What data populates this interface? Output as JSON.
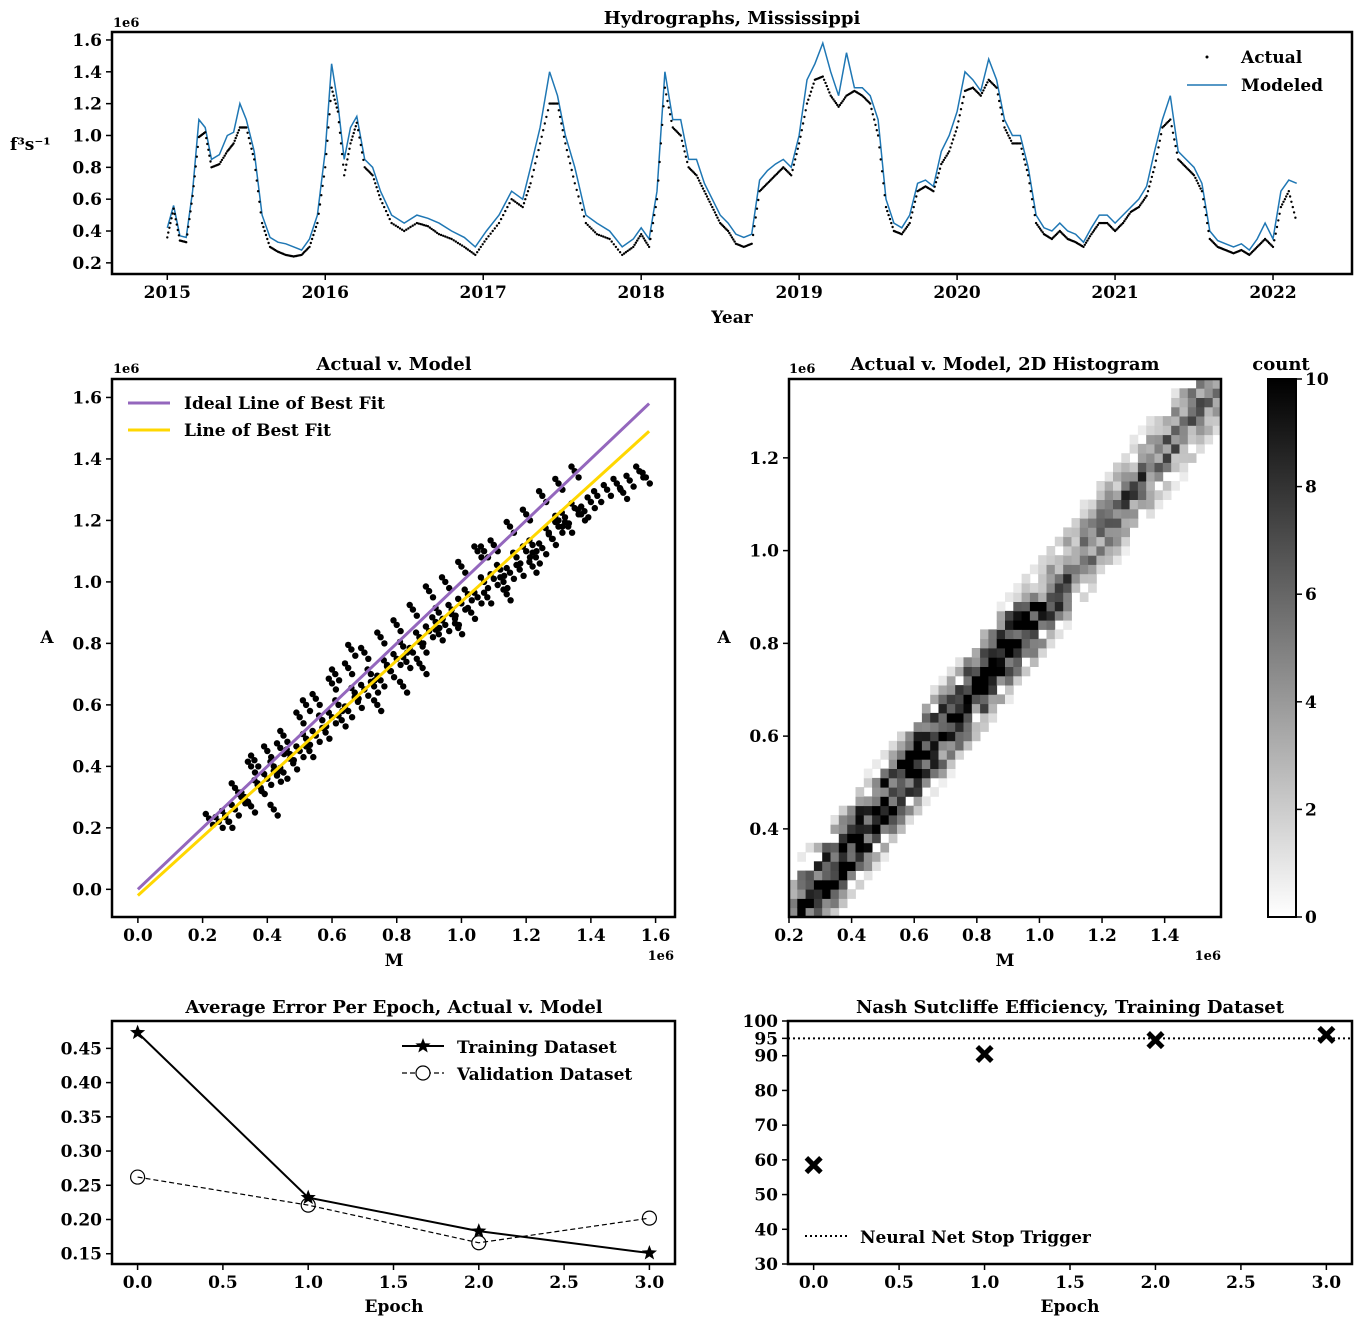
{
  "chart_data": [
    {
      "type": "line",
      "title": "Hydrographs, Mississippi",
      "xlabel": "Year",
      "ylabel": "f³s⁻¹",
      "y_offset_label": "1e6",
      "xlim": [
        2014.65,
        2022.5
      ],
      "ylim": [
        0.13,
        1.65
      ],
      "x_ticks": [
        2015,
        2016,
        2017,
        2018,
        2019,
        2020,
        2021,
        2022
      ],
      "y_ticks": [
        0.2,
        0.4,
        0.6,
        0.8,
        1.0,
        1.2,
        1.4,
        1.6
      ],
      "legend": "top-right",
      "series": [
        {
          "name": "Actual",
          "style": "dots",
          "color": "#000000",
          "x": [
            2015.0,
            2015.04,
            2015.08,
            2015.12,
            2015.16,
            2015.2,
            2015.24,
            2015.28,
            2015.33,
            2015.38,
            2015.42,
            2015.46,
            2015.5,
            2015.55,
            2015.6,
            2015.65,
            2015.7,
            2015.75,
            2015.8,
            2015.85,
            2015.9,
            2015.95,
            2016.0,
            2016.04,
            2016.08,
            2016.12,
            2016.16,
            2016.2,
            2016.25,
            2016.3,
            2016.35,
            2016.42,
            2016.5,
            2016.58,
            2016.65,
            2016.72,
            2016.8,
            2016.88,
            2016.95,
            2017.02,
            2017.1,
            2017.18,
            2017.25,
            2017.3,
            2017.36,
            2017.42,
            2017.47,
            2017.52,
            2017.58,
            2017.65,
            2017.72,
            2017.8,
            2017.88,
            2017.95,
            2018.0,
            2018.05,
            2018.1,
            2018.15,
            2018.2,
            2018.25,
            2018.3,
            2018.35,
            2018.4,
            2018.45,
            2018.5,
            2018.55,
            2018.6,
            2018.65,
            2018.7,
            2018.75,
            2018.8,
            2018.85,
            2018.9,
            2018.95,
            2019.0,
            2019.05,
            2019.1,
            2019.15,
            2019.2,
            2019.25,
            2019.3,
            2019.35,
            2019.4,
            2019.45,
            2019.5,
            2019.55,
            2019.6,
            2019.65,
            2019.7,
            2019.75,
            2019.8,
            2019.85,
            2019.9,
            2019.95,
            2020.0,
            2020.05,
            2020.1,
            2020.15,
            2020.2,
            2020.25,
            2020.3,
            2020.35,
            2020.4,
            2020.45,
            2020.5,
            2020.55,
            2020.6,
            2020.65,
            2020.7,
            2020.75,
            2020.8,
            2020.85,
            2020.9,
            2020.95,
            2021.0,
            2021.05,
            2021.1,
            2021.15,
            2021.2,
            2021.25,
            2021.3,
            2021.35,
            2021.4,
            2021.45,
            2021.5,
            2021.55,
            2021.6,
            2021.65,
            2021.7,
            2021.75,
            2021.8,
            2021.85,
            2021.9,
            2021.95,
            2022.0,
            2022.05,
            2022.1,
            2022.15
          ],
          "y": [
            0.36,
            0.54,
            0.34,
            0.33,
            0.62,
            0.99,
            1.02,
            0.8,
            0.82,
            0.9,
            0.95,
            1.05,
            1.05,
            0.85,
            0.45,
            0.3,
            0.27,
            0.25,
            0.24,
            0.25,
            0.3,
            0.45,
            0.8,
            1.3,
            1.15,
            0.75,
            0.95,
            1.08,
            0.8,
            0.75,
            0.6,
            0.45,
            0.4,
            0.45,
            0.43,
            0.38,
            0.35,
            0.3,
            0.25,
            0.35,
            0.45,
            0.6,
            0.55,
            0.7,
            0.95,
            1.2,
            1.2,
            0.95,
            0.7,
            0.45,
            0.38,
            0.35,
            0.25,
            0.3,
            0.38,
            0.3,
            0.6,
            1.3,
            1.05,
            1.0,
            0.8,
            0.75,
            0.65,
            0.55,
            0.45,
            0.4,
            0.32,
            0.3,
            0.32,
            0.65,
            0.7,
            0.75,
            0.8,
            0.75,
            0.95,
            1.2,
            1.35,
            1.37,
            1.25,
            1.18,
            1.25,
            1.28,
            1.25,
            1.2,
            1.0,
            0.55,
            0.4,
            0.38,
            0.45,
            0.65,
            0.68,
            0.65,
            0.82,
            0.9,
            1.05,
            1.28,
            1.3,
            1.25,
            1.35,
            1.3,
            1.05,
            0.95,
            0.95,
            0.75,
            0.45,
            0.38,
            0.35,
            0.4,
            0.35,
            0.33,
            0.3,
            0.38,
            0.45,
            0.45,
            0.4,
            0.45,
            0.52,
            0.55,
            0.62,
            0.8,
            1.05,
            1.1,
            0.85,
            0.8,
            0.75,
            0.65,
            0.35,
            0.3,
            0.28,
            0.26,
            0.28,
            0.25,
            0.3,
            0.35,
            0.3,
            0.55,
            0.65,
            0.45
          ]
        },
        {
          "name": "Modeled",
          "style": "line",
          "color": "#1f77b4",
          "x": [
            2015.0,
            2015.04,
            2015.08,
            2015.12,
            2015.16,
            2015.2,
            2015.24,
            2015.28,
            2015.33,
            2015.38,
            2015.42,
            2015.46,
            2015.5,
            2015.55,
            2015.6,
            2015.65,
            2015.7,
            2015.75,
            2015.8,
            2015.85,
            2015.9,
            2015.95,
            2016.0,
            2016.04,
            2016.08,
            2016.12,
            2016.16,
            2016.2,
            2016.25,
            2016.3,
            2016.35,
            2016.42,
            2016.5,
            2016.58,
            2016.65,
            2016.72,
            2016.8,
            2016.88,
            2016.95,
            2017.02,
            2017.1,
            2017.18,
            2017.25,
            2017.3,
            2017.36,
            2017.42,
            2017.47,
            2017.52,
            2017.58,
            2017.65,
            2017.72,
            2017.8,
            2017.88,
            2017.95,
            2018.0,
            2018.05,
            2018.1,
            2018.15,
            2018.2,
            2018.25,
            2018.3,
            2018.35,
            2018.4,
            2018.45,
            2018.5,
            2018.55,
            2018.6,
            2018.65,
            2018.7,
            2018.75,
            2018.8,
            2018.85,
            2018.9,
            2018.95,
            2019.0,
            2019.05,
            2019.1,
            2019.15,
            2019.2,
            2019.25,
            2019.3,
            2019.35,
            2019.4,
            2019.45,
            2019.5,
            2019.55,
            2019.6,
            2019.65,
            2019.7,
            2019.75,
            2019.8,
            2019.85,
            2019.9,
            2019.95,
            2020.0,
            2020.05,
            2020.1,
            2020.15,
            2020.2,
            2020.25,
            2020.3,
            2020.35,
            2020.4,
            2020.45,
            2020.5,
            2020.55,
            2020.6,
            2020.65,
            2020.7,
            2020.75,
            2020.8,
            2020.85,
            2020.9,
            2020.95,
            2021.0,
            2021.05,
            2021.1,
            2021.15,
            2021.2,
            2021.25,
            2021.3,
            2021.35,
            2021.4,
            2021.45,
            2021.5,
            2021.55,
            2021.6,
            2021.65,
            2021.7,
            2021.75,
            2021.8,
            2021.85,
            2021.9,
            2021.95,
            2022.0,
            2022.05,
            2022.1,
            2022.15
          ],
          "y": [
            0.42,
            0.56,
            0.37,
            0.36,
            0.65,
            1.1,
            1.05,
            0.85,
            0.88,
            1.0,
            1.02,
            1.2,
            1.1,
            0.9,
            0.5,
            0.36,
            0.33,
            0.32,
            0.3,
            0.28,
            0.35,
            0.5,
            0.9,
            1.45,
            1.2,
            0.85,
            1.05,
            1.12,
            0.85,
            0.8,
            0.65,
            0.5,
            0.45,
            0.5,
            0.48,
            0.45,
            0.4,
            0.36,
            0.3,
            0.4,
            0.5,
            0.65,
            0.6,
            0.8,
            1.05,
            1.4,
            1.25,
            1.0,
            0.8,
            0.5,
            0.45,
            0.4,
            0.3,
            0.35,
            0.42,
            0.35,
            0.65,
            1.4,
            1.1,
            1.1,
            0.85,
            0.85,
            0.7,
            0.6,
            0.5,
            0.45,
            0.38,
            0.36,
            0.38,
            0.72,
            0.78,
            0.82,
            0.85,
            0.8,
            1.0,
            1.35,
            1.45,
            1.58,
            1.4,
            1.25,
            1.52,
            1.3,
            1.3,
            1.25,
            1.1,
            0.6,
            0.45,
            0.42,
            0.5,
            0.7,
            0.72,
            0.68,
            0.9,
            1.0,
            1.15,
            1.4,
            1.35,
            1.28,
            1.48,
            1.35,
            1.1,
            1.0,
            1.0,
            0.8,
            0.5,
            0.42,
            0.4,
            0.45,
            0.4,
            0.38,
            0.33,
            0.42,
            0.5,
            0.5,
            0.45,
            0.5,
            0.55,
            0.6,
            0.68,
            0.9,
            1.1,
            1.25,
            0.9,
            0.85,
            0.8,
            0.7,
            0.4,
            0.34,
            0.32,
            0.3,
            0.32,
            0.28,
            0.35,
            0.45,
            0.35,
            0.65,
            0.72,
            0.7
          ]
        }
      ]
    },
    {
      "type": "scatter",
      "title": "Actual v. Model",
      "xlabel": "M",
      "ylabel": "A",
      "x_offset_label": "1e6",
      "y_offset_label": "1e6",
      "xlim": [
        -0.08,
        1.66
      ],
      "ylim": [
        -0.09,
        1.66
      ],
      "x_ticks": [
        0.0,
        0.2,
        0.4,
        0.6,
        0.8,
        1.0,
        1.2,
        1.4,
        1.6
      ],
      "y_ticks": [
        0.0,
        0.2,
        0.4,
        0.6,
        0.8,
        1.0,
        1.2,
        1.4,
        1.6
      ],
      "legend": "top-left",
      "lines": [
        {
          "name": "Ideal Line of Best Fit",
          "color": "#9467bd",
          "x": [
            0.0,
            1.58
          ],
          "y": [
            0.0,
            1.58
          ]
        },
        {
          "name": "Line of Best Fit",
          "color": "#ffd700",
          "x": [
            0.0,
            1.58
          ],
          "y": [
            -0.02,
            1.49
          ]
        }
      ],
      "points": {
        "x": [
          0.22,
          0.25,
          0.27,
          0.3,
          0.32,
          0.35,
          0.37,
          0.4,
          0.42,
          0.45,
          0.47,
          0.5,
          0.52,
          0.55,
          0.57,
          0.6,
          0.62,
          0.65,
          0.67,
          0.7,
          0.72,
          0.75,
          0.77,
          0.8,
          0.82,
          0.85,
          0.87,
          0.9,
          0.92,
          0.95,
          0.97,
          1.0,
          1.02,
          1.05,
          1.07,
          1.1,
          1.12,
          1.15,
          1.17,
          1.2,
          1.22,
          1.25,
          1.27,
          1.3,
          1.32,
          1.35,
          1.37,
          1.4,
          1.42,
          1.45,
          1.48,
          1.5,
          1.52,
          1.55,
          1.57,
          0.3,
          0.35,
          0.4,
          0.45,
          0.5,
          0.55,
          0.6,
          0.65,
          0.7,
          0.75,
          0.8,
          0.85,
          0.9,
          0.95,
          1.0,
          1.05,
          1.1,
          1.15,
          1.2,
          1.25,
          1.3,
          1.35,
          0.28,
          0.33,
          0.38,
          0.43,
          0.48,
          0.53,
          0.58,
          0.63,
          0.68,
          0.73,
          0.78,
          0.83,
          0.88,
          0.93,
          0.98,
          1.03,
          1.08,
          1.13,
          1.18,
          1.23,
          1.28,
          1.33,
          1.38,
          0.42,
          0.61,
          0.74,
          0.88,
          0.99,
          1.07,
          0.36,
          0.44,
          0.52,
          0.66,
          0.82,
          0.93,
          1.14,
          1.22,
          1.3
        ],
        "y": [
          0.23,
          0.22,
          0.24,
          0.26,
          0.3,
          0.27,
          0.34,
          0.36,
          0.4,
          0.38,
          0.44,
          0.45,
          0.49,
          0.5,
          0.55,
          0.56,
          0.6,
          0.58,
          0.64,
          0.65,
          0.7,
          0.68,
          0.73,
          0.75,
          0.79,
          0.77,
          0.82,
          0.84,
          0.87,
          0.86,
          0.91,
          0.93,
          0.96,
          0.95,
          1.0,
          1.01,
          1.04,
          1.03,
          1.08,
          1.1,
          1.12,
          1.11,
          1.16,
          1.2,
          1.21,
          1.24,
          1.22,
          1.26,
          1.28,
          1.3,
          1.32,
          1.29,
          1.33,
          1.36,
          1.34,
          0.33,
          0.4,
          0.45,
          0.5,
          0.56,
          0.62,
          0.67,
          0.72,
          0.77,
          0.82,
          0.86,
          0.91,
          0.97,
          1.0,
          1.05,
          1.1,
          1.12,
          1.18,
          1.22,
          1.28,
          1.32,
          1.36,
          0.22,
          0.3,
          0.33,
          0.37,
          0.41,
          0.45,
          0.51,
          0.55,
          0.61,
          0.66,
          0.71,
          0.74,
          0.79,
          0.83,
          0.88,
          0.9,
          0.95,
          1.0,
          1.04,
          1.08,
          1.14,
          1.18,
          1.23,
          0.26,
          0.7,
          0.6,
          0.72,
          0.85,
          1.1,
          0.42,
          0.46,
          0.6,
          0.78,
          0.66,
          0.9,
          0.96,
          1.05,
          1.18
        ]
      }
    },
    {
      "type": "heatmap",
      "title": "Actual v. Model, 2D Histogram",
      "xlabel": "M",
      "ylabel": "A",
      "x_offset_label": "1e6",
      "y_offset_label": "1e6",
      "xlim": [
        0.2,
        1.58
      ],
      "ylim": [
        0.21,
        1.37
      ],
      "x_ticks": [
        0.2,
        0.4,
        0.6,
        0.8,
        1.0,
        1.2,
        1.4
      ],
      "y_ticks": [
        0.4,
        0.6,
        0.8,
        1.0,
        1.2
      ],
      "colorbar_label": "count",
      "colorbar_range": [
        0,
        10
      ],
      "colorbar_ticks": [
        0,
        2,
        4,
        6,
        8,
        10
      ],
      "colormap": "Greys",
      "band": {
        "x0": 0.22,
        "y0": 0.21,
        "x1": 1.58,
        "y1": 1.37,
        "width": 0.12
      }
    },
    {
      "type": "line",
      "title": "Average Error Per Epoch, Actual v. Model",
      "xlabel": "Epoch",
      "ylabel": "",
      "xlim": [
        -0.15,
        3.15
      ],
      "ylim": [
        0.135,
        0.49
      ],
      "x_ticks": [
        0.0,
        0.5,
        1.0,
        1.5,
        2.0,
        2.5,
        3.0
      ],
      "y_ticks": [
        0.15,
        0.2,
        0.25,
        0.3,
        0.35,
        0.4,
        0.45
      ],
      "legend": "top-right",
      "x": [
        0,
        1,
        2,
        3
      ],
      "series": [
        {
          "name": "Training Dataset",
          "values": [
            0.473,
            0.232,
            0.183,
            0.151
          ],
          "marker": "star",
          "style": "solid"
        },
        {
          "name": "Validation Dataset",
          "values": [
            0.262,
            0.221,
            0.166,
            0.202
          ],
          "marker": "open-circle",
          "style": "dashed"
        }
      ]
    },
    {
      "type": "scatter",
      "title": "Nash Sutcliffe Efficiency, Training Dataset",
      "xlabel": "Epoch",
      "ylabel": "",
      "xlim": [
        -0.15,
        3.15
      ],
      "ylim": [
        30,
        100
      ],
      "x_ticks": [
        0.0,
        0.5,
        1.0,
        1.5,
        2.0,
        2.5,
        3.0
      ],
      "y_ticks": [
        30,
        40,
        50,
        60,
        70,
        80,
        90,
        95,
        100
      ],
      "legend": "bottom-left",
      "x": [
        0,
        1,
        2,
        3
      ],
      "series": [
        {
          "name": "",
          "values": [
            58.5,
            90.5,
            94.5,
            96.0
          ],
          "marker": "x-filled"
        }
      ],
      "hline": {
        "name": "Neural Net Stop Trigger",
        "value": 95,
        "style": "dotted"
      }
    }
  ]
}
